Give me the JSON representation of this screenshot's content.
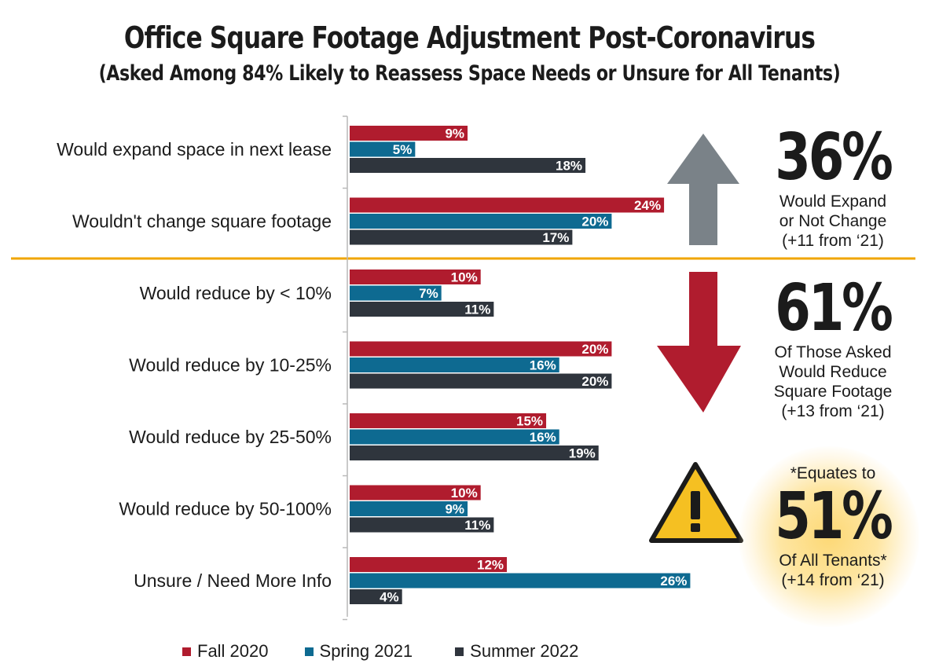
{
  "title": "Office Square Footage Adjustment Post-Coronavirus",
  "subtitle": "(Asked Among 84% Likely to Reassess Space Needs or Unsure for All Tenants)",
  "colors": {
    "fall2020": "#b01c2e",
    "spring2021": "#0e6a91",
    "summer2022": "#2f353d",
    "divider": "#f0a500",
    "up_arrow": "#7a8288",
    "down_arrow": "#b01c2e",
    "warning": "#f5c022"
  },
  "chart_data": {
    "type": "bar",
    "orientation": "horizontal",
    "categories": [
      "Would expand space in next lease",
      "Wouldn't change square footage",
      "Would reduce by < 10%",
      "Would reduce by 10-25%",
      "Would reduce by 25-50%",
      "Would reduce by 50-100%",
      "Unsure / Need More Info"
    ],
    "series": [
      {
        "name": "Fall 2020",
        "values": [
          9,
          24,
          10,
          20,
          15,
          10,
          12
        ]
      },
      {
        "name": "Spring 2021",
        "values": [
          5,
          20,
          7,
          16,
          16,
          9,
          26
        ]
      },
      {
        "name": "Summer 2022",
        "values": [
          18,
          17,
          11,
          20,
          19,
          11,
          4
        ]
      }
    ],
    "value_suffix": "%",
    "xlim": [
      0,
      30
    ],
    "legend_position": "bottom",
    "grid": false
  },
  "stats": {
    "expand": {
      "value": "36%",
      "text": "Would Expand\nor Not Change\n(+11 from ‘21)"
    },
    "reduce": {
      "value": "61%",
      "text": "Of Those Asked\nWould Reduce\nSquare Footage\n(+13 from ‘21)"
    },
    "tenants": {
      "prefix": "*Equates to",
      "value": "51%",
      "text": "Of All Tenants*\n(+14 from ‘21)"
    }
  },
  "icons": {
    "up": "up-arrow-icon",
    "down": "down-arrow-icon",
    "warning": "warning-icon"
  }
}
